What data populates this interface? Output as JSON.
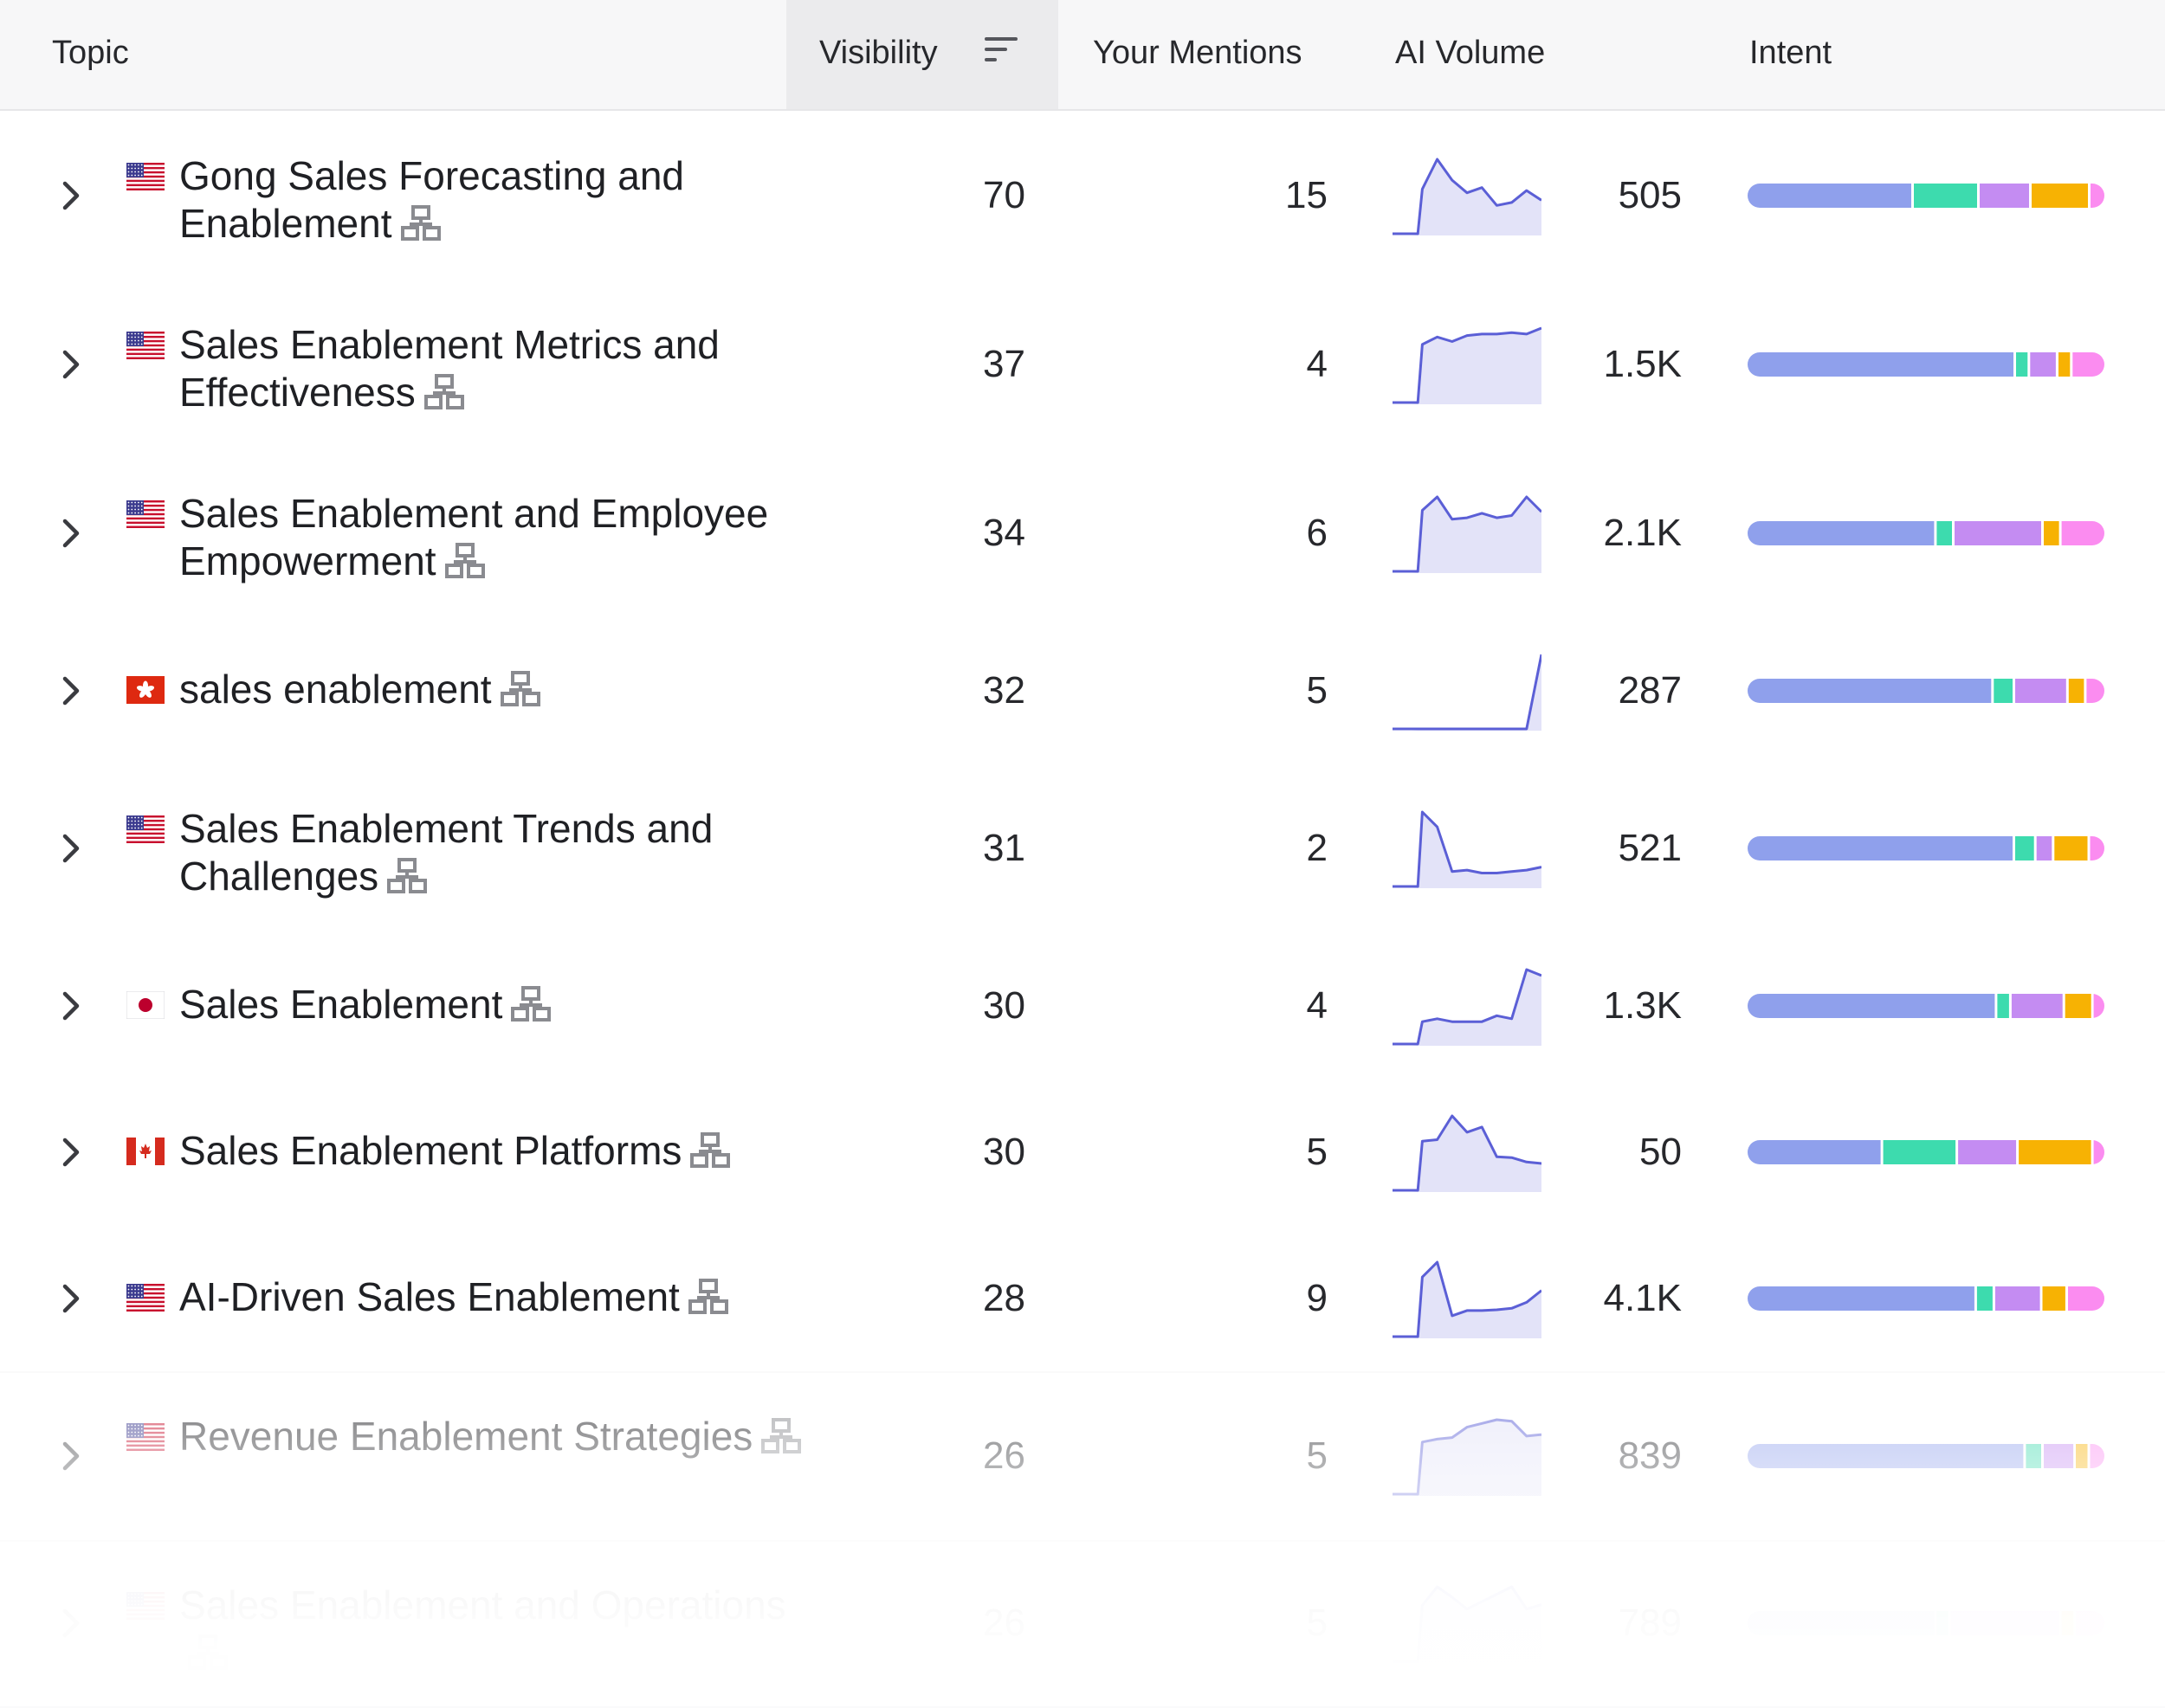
{
  "header": {
    "topic": "Topic",
    "visibility": "Visibility",
    "mentions": "Your Mentions",
    "volume": "AI Volume",
    "intent": "Intent"
  },
  "colors": {
    "spark_line": "#5b5fd6",
    "spark_fill": "#e3e3f8",
    "intent_segments": [
      "#8fa0ec",
      "#3ddbae",
      "#c48cf2",
      "#f7b203",
      "#fb8cf0"
    ]
  },
  "rows": [
    {
      "flag": "us",
      "topic": "Gong Sales Forecasting and Enablement",
      "visibility": "70",
      "mentions": "15",
      "volume": "505",
      "trend": [
        0,
        0,
        60,
        100,
        72,
        55,
        62,
        38,
        42,
        58,
        45
      ],
      "intent": [
        48,
        19,
        15,
        17,
        4
      ]
    },
    {
      "flag": "us",
      "topic": "Sales Enablement Metrics and Effectiveness",
      "visibility": "37",
      "mentions": "4",
      "volume": "1.5K",
      "trend": [
        0,
        0,
        78,
        88,
        82,
        90,
        92,
        92,
        94,
        92,
        100
      ],
      "intent": [
        76,
        4,
        8,
        4,
        9
      ]
    },
    {
      "flag": "us",
      "topic": "Sales Enablement and Employee Empowerment",
      "visibility": "34",
      "mentions": "6",
      "volume": "2.1K",
      "trend": [
        0,
        0,
        82,
        100,
        70,
        72,
        78,
        72,
        75,
        100,
        80
      ],
      "intent": [
        53,
        5,
        25,
        5,
        12
      ]
    },
    {
      "flag": "hk",
      "topic": "sales enablement",
      "visibility": "32",
      "mentions": "5",
      "volume": "287",
      "trend": [
        0,
        0,
        0,
        0,
        0,
        0,
        0,
        0,
        0,
        0,
        100
      ],
      "intent": [
        69,
        6,
        15,
        5,
        5
      ]
    },
    {
      "flag": "us",
      "topic": "Sales Enablement Trends and Challenges",
      "visibility": "31",
      "mentions": "2",
      "volume": "521",
      "trend": [
        0,
        0,
        100,
        80,
        20,
        22,
        18,
        18,
        20,
        22,
        26
      ],
      "intent": [
        75,
        6,
        5,
        10,
        4
      ]
    },
    {
      "flag": "jp",
      "topic": "Sales Enablement",
      "visibility": "30",
      "mentions": "4",
      "volume": "1.3K",
      "trend": [
        0,
        0,
        30,
        34,
        30,
        30,
        30,
        38,
        34,
        100,
        92
      ],
      "intent": [
        70,
        4,
        15,
        8,
        3
      ]
    },
    {
      "flag": "ca",
      "topic": "Sales Enablement Platforms",
      "visibility": "30",
      "mentions": "5",
      "volume": "50",
      "trend": [
        0,
        0,
        66,
        68,
        100,
        78,
        85,
        45,
        44,
        38,
        36
      ],
      "intent": [
        38,
        21,
        17,
        21,
        3
      ]
    },
    {
      "flag": "us",
      "topic": "AI-Driven Sales Enablement",
      "visibility": "28",
      "mentions": "9",
      "volume": "4.1K",
      "trend": [
        0,
        0,
        80,
        100,
        28,
        35,
        35,
        36,
        38,
        46,
        62
      ],
      "intent": [
        63,
        5,
        13,
        7,
        10
      ]
    },
    {
      "flag": "us",
      "topic": "Revenue Enablement Strategies",
      "visibility": "26",
      "mentions": "5",
      "volume": "839",
      "trend": [
        0,
        0,
        70,
        74,
        76,
        90,
        95,
        100,
        98,
        78,
        80
      ],
      "intent": [
        78,
        5,
        9,
        4,
        4
      ]
    },
    {
      "flag": "us",
      "topic": "Sales Enablement and Operations",
      "visibility": "26",
      "mentions": "5",
      "volume": "789",
      "trend": [
        0,
        0,
        75,
        100,
        86,
        70,
        80,
        90,
        100,
        70,
        76
      ],
      "intent": [
        53,
        4,
        31,
        4,
        8
      ]
    }
  ]
}
